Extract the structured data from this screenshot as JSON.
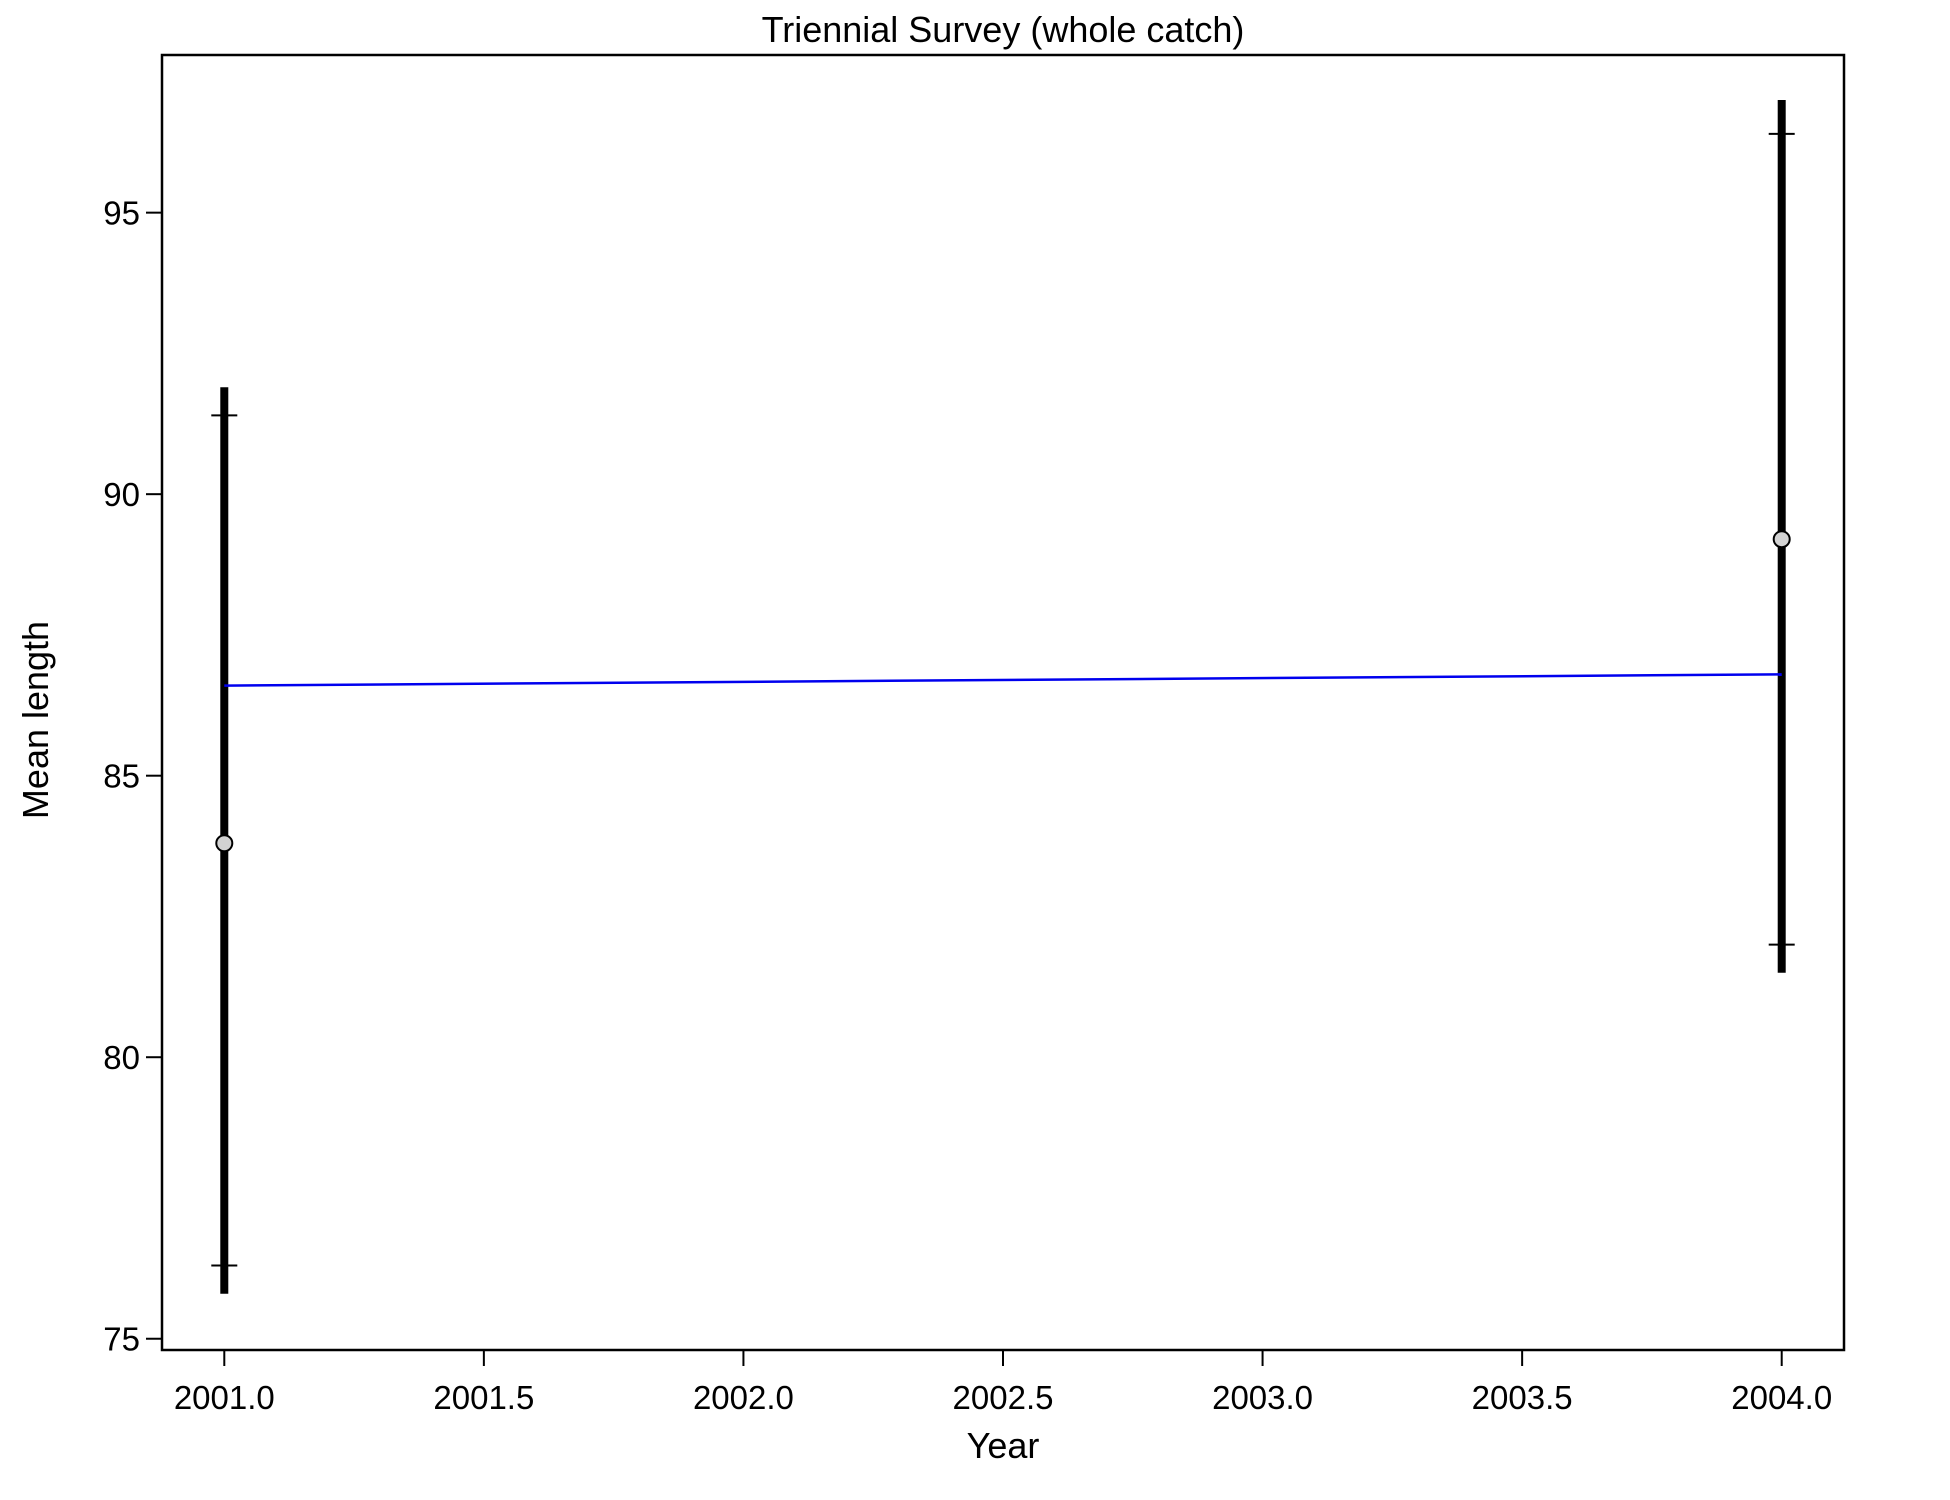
{
  "chart_data": {
    "type": "scatter",
    "title": "Triennial Survey (whole catch)",
    "xlabel": "Year",
    "ylabel": "Mean length",
    "xlim": [
      2000.88,
      2004.12
    ],
    "ylim": [
      74.8,
      97.8
    ],
    "xticks": [
      "2001.0",
      "2001.5",
      "2002.0",
      "2002.5",
      "2003.0",
      "2003.5",
      "2004.0"
    ],
    "yticks": [
      "75",
      "80",
      "85",
      "90",
      "95"
    ],
    "grid": false,
    "legend": "none",
    "observed": {
      "x": [
        2001,
        2004
      ],
      "y": [
        83.8,
        89.2
      ],
      "inner_low": [
        76.3,
        82.0
      ],
      "inner_high": [
        91.4,
        96.4
      ],
      "outer_low": [
        75.8,
        81.5
      ],
      "outer_high": [
        91.9,
        97.0
      ]
    },
    "expected": {
      "x": [
        2001,
        2004
      ],
      "y": [
        86.6,
        86.8
      ]
    },
    "colors": {
      "expected_line": "#0000ee",
      "points_fill": "#d3d3d3",
      "error_bars": "#000000"
    }
  }
}
